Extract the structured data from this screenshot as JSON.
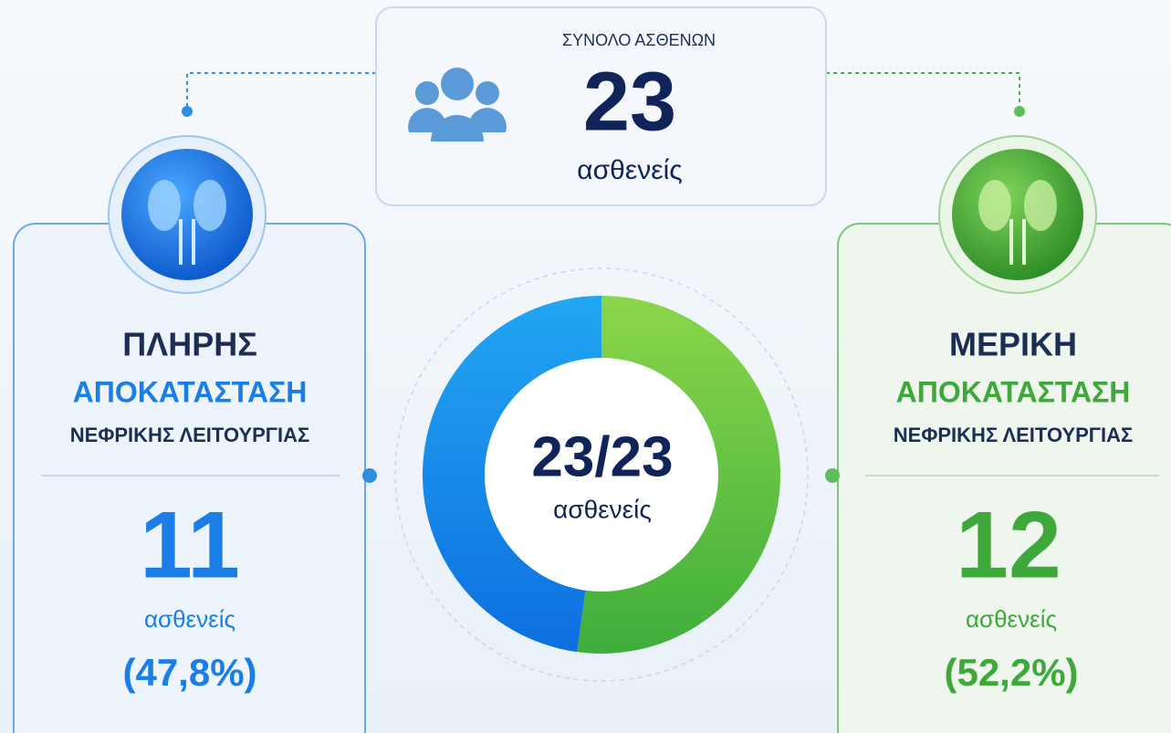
{
  "total": {
    "title": "ΣΥΝΟΛΟ ΑΣΘΕΝΩΝ",
    "count": "23",
    "unit": "ασθενείς"
  },
  "full": {
    "line1": "ΠΛΗΡΗΣ",
    "line2": "ΑΠΟΚΑΤΑΣΤΑΣΗ",
    "line3": "ΝΕΦΡΙΚΗΣ ΛΕΙΤΟΥΡΓΙΑΣ",
    "count": 11,
    "unit": "ασθενείς",
    "percent": "(47,8%)",
    "color": "#1a7ee6"
  },
  "partial": {
    "line1": "ΜΕΡΙΚΗ",
    "line2": "ΑΠΟΚΑΤΑΣΤΑΣΗ",
    "line3": "ΝΕΦΡΙΚΗΣ ΛΕΙΤΟΥΡΓΙΑΣ",
    "count": 12,
    "unit": "ασθενείς",
    "percent": "(52,2%)",
    "color": "#3ea83a"
  },
  "donut": {
    "center": "23/23",
    "unit": "ασθενείς"
  }
}
